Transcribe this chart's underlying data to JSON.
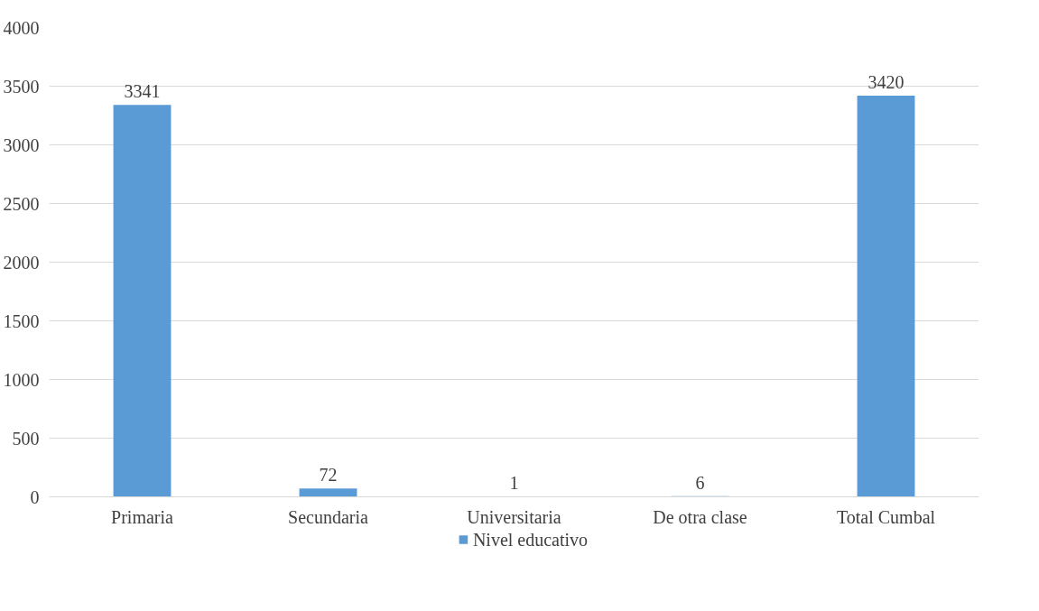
{
  "chart_data": {
    "type": "bar",
    "categories": [
      "Primaria",
      "Secundaria",
      "Universitaria",
      "De otra clase",
      "Total Cumbal"
    ],
    "series": [
      {
        "name": "Nivel educativo",
        "color": "#5b9bd5",
        "values": [
          3341,
          72,
          1,
          6,
          3420
        ]
      }
    ],
    "ylim": [
      0,
      4000
    ],
    "yticks": [
      0,
      500,
      1000,
      1500,
      2000,
      2500,
      3000,
      3500,
      4000
    ],
    "grid": "y",
    "legend": "bottom",
    "data_labels": true
  }
}
